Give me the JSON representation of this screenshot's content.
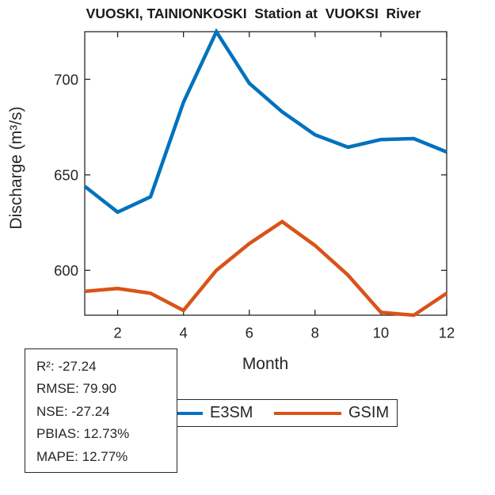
{
  "chart_data": {
    "type": "line",
    "title": "VUOSKI, TAINIONKOSKI  Station at  VUOKSI  River",
    "xlabel": "Month",
    "ylabel": "Discharge (m³/s)",
    "x": [
      1,
      2,
      3,
      4,
      5,
      6,
      7,
      8,
      9,
      10,
      11,
      12
    ],
    "series": [
      {
        "name": "E3SM",
        "color": "#0072BD",
        "values": [
          644,
          630.5,
          638.5,
          688,
          725,
          698,
          683,
          671,
          664.5,
          668.5,
          669,
          662
        ]
      },
      {
        "name": "GSIM",
        "color": "#D95319",
        "values": [
          589,
          590.5,
          588,
          579,
          600,
          614,
          625.5,
          613,
          597.5,
          578,
          576.5,
          588
        ]
      }
    ],
    "xlim": [
      1,
      12
    ],
    "ylim": [
      576.5,
      725
    ],
    "xticks": [
      2,
      4,
      6,
      8,
      10,
      12
    ],
    "yticks": [
      600,
      650,
      700
    ],
    "grid": false,
    "legend_position": "south-below-axes"
  },
  "stats_box": {
    "lines": [
      "R²: -27.24",
      "RMSE: 79.90",
      "NSE: -27.24",
      "PBIAS: 12.73%",
      "MAPE: 12.77%"
    ]
  },
  "legend": {
    "items": [
      {
        "label": "E3SM",
        "color": "#0072BD"
      },
      {
        "label": "GSIM",
        "color": "#D95319"
      }
    ]
  },
  "colors": {
    "axis": "#262626",
    "text": "#262626",
    "background": "#ffffff",
    "series_blue": "#0072BD",
    "series_orange": "#D95319"
  }
}
